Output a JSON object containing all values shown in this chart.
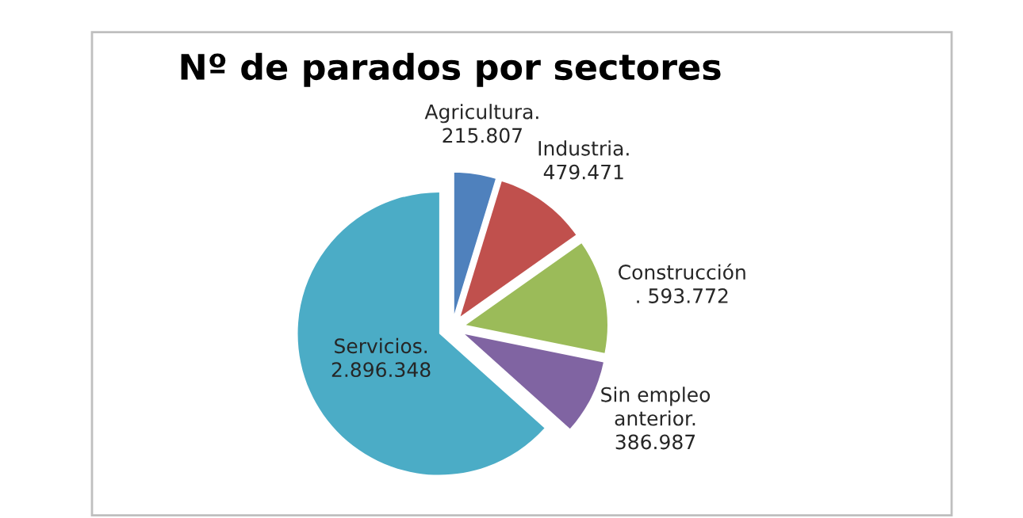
{
  "chart_data": {
    "type": "pie",
    "title": "Nº de parados por sectores",
    "categories": [
      "Agricultura.",
      "Industria.",
      "Construcción",
      "Sin empleo anterior.",
      "Servicios."
    ],
    "values": [
      215807,
      479471,
      593772,
      386987,
      2896348
    ],
    "value_labels": [
      "215.807",
      "479.471",
      ". 593.772",
      "386.987",
      "2.896.348"
    ],
    "colors": [
      "#4f81bd",
      "#c0504d",
      "#9bbb59",
      "#8064a2",
      "#4bacc6"
    ],
    "legend": false
  }
}
